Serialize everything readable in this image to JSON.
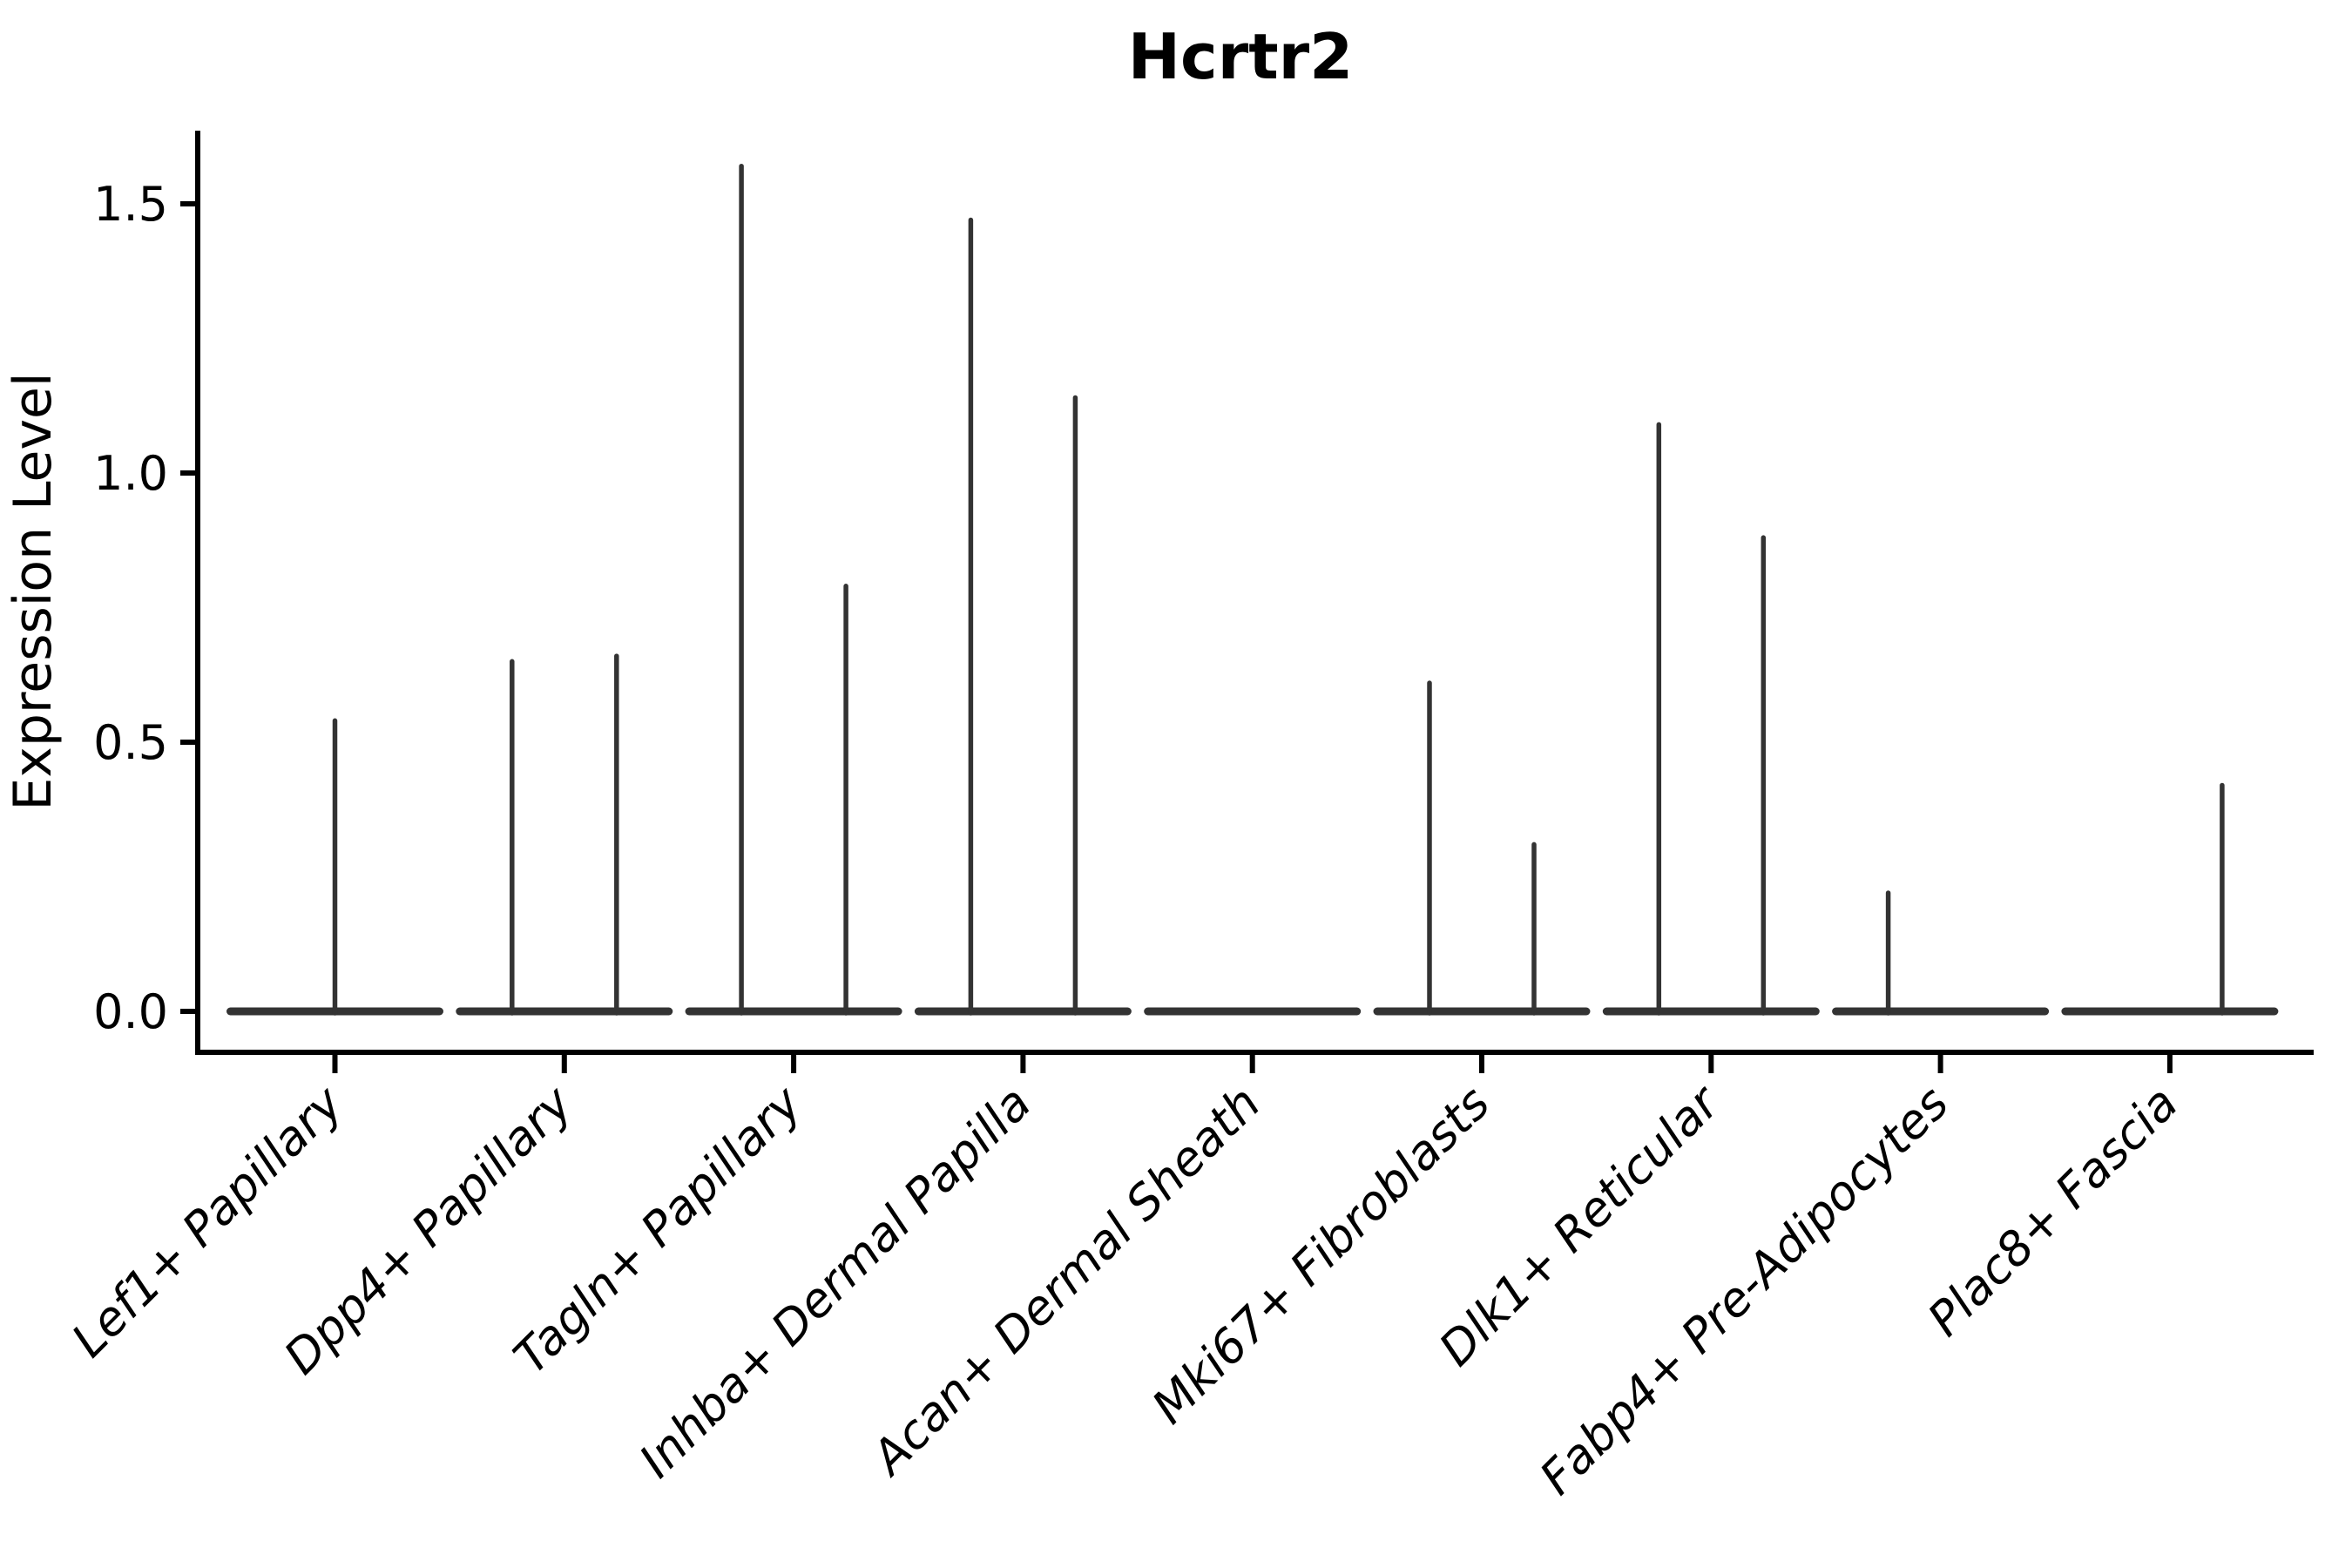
{
  "title": "Hcrtr2",
  "chart_data": {
    "type": "violin",
    "title": "Hcrtr2",
    "xlabel": "",
    "ylabel": "Expression Level",
    "ylim": [
      -0.08,
      1.64
    ],
    "grid": false,
    "legend": "none",
    "baseline_value": 0.0,
    "yticks": [
      {
        "value": 0.0,
        "label": "0.0"
      },
      {
        "value": 0.5,
        "label": "0.5"
      },
      {
        "value": 1.0,
        "label": "1.0"
      },
      {
        "value": 1.5,
        "label": "1.5"
      }
    ],
    "categories": [
      {
        "label": "Lef1+ Papillary",
        "spikes": [
          {
            "side": "center",
            "max": 0.54
          }
        ]
      },
      {
        "label": "Dpp4+ Papillary",
        "spikes": [
          {
            "side": "left",
            "max": 0.65
          },
          {
            "side": "right",
            "max": 0.66
          }
        ]
      },
      {
        "label": "Tagln+ Papillary",
        "spikes": [
          {
            "side": "left",
            "max": 1.57
          },
          {
            "side": "right",
            "max": 0.79
          }
        ]
      },
      {
        "label": "Inhba+ Dermal Papilla",
        "spikes": [
          {
            "side": "left",
            "max": 1.47
          },
          {
            "side": "right",
            "max": 1.14
          }
        ]
      },
      {
        "label": "Acan+ Dermal Sheath",
        "spikes": []
      },
      {
        "label": "Mki67+ Fibroblasts",
        "spikes": [
          {
            "side": "left",
            "max": 0.61
          },
          {
            "side": "right",
            "max": 0.31
          }
        ]
      },
      {
        "label": "Dlk1+ Reticular",
        "spikes": [
          {
            "side": "left",
            "max": 1.09
          },
          {
            "side": "right",
            "max": 0.88
          }
        ]
      },
      {
        "label": "Fabp4+ Pre-Adipocytes",
        "spikes": [
          {
            "side": "left",
            "max": 0.22
          }
        ]
      },
      {
        "label": "Plac8+ Fascia",
        "spikes": [
          {
            "side": "right",
            "max": 0.42
          }
        ]
      }
    ],
    "colors": {
      "violin_stroke": "#333333",
      "axis": "#000000",
      "text": "#000000",
      "background": "#ffffff"
    }
  }
}
